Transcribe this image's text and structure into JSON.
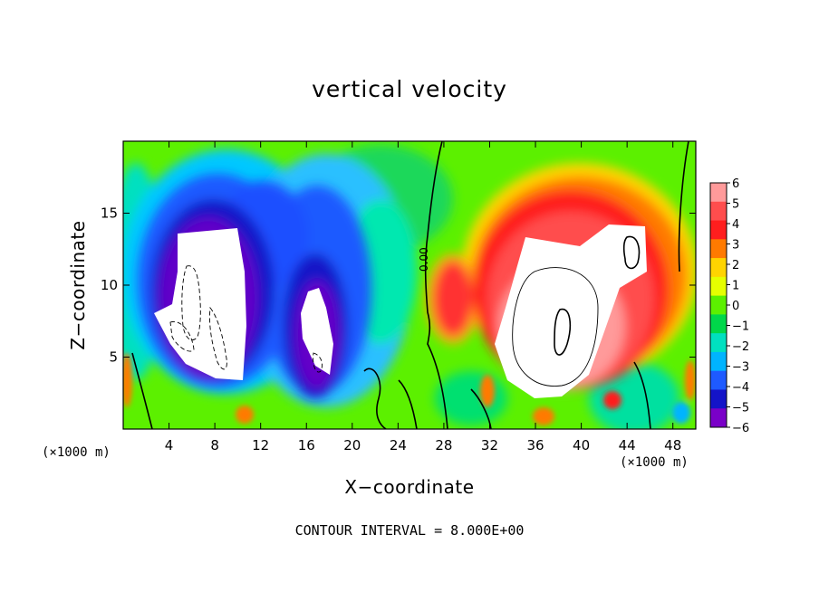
{
  "chart_data": {
    "type": "heatmap",
    "title": "vertical velocity",
    "xlabel": "X−coordinate",
    "ylabel": "Z−coordinate",
    "x_unit": "(×1000 m)",
    "y_unit": "(×1000 m)",
    "xlim": [
      0,
      50
    ],
    "ylim": [
      0,
      20
    ],
    "x_ticks": [
      4,
      8,
      12,
      16,
      20,
      24,
      28,
      32,
      36,
      40,
      44,
      48
    ],
    "y_ticks": [
      5,
      10,
      15
    ],
    "colorbar": {
      "ticks": [
        "6",
        "5",
        "4",
        "3",
        "2",
        "1",
        "0",
        "−1",
        "−2",
        "−3",
        "−4",
        "−5",
        "−6"
      ],
      "colors": [
        "#ff9a9a",
        "#ff4d4d",
        "#ff1e1e",
        "#ff7a00",
        "#ffd400",
        "#e6ff00",
        "#5cf000",
        "#00d84a",
        "#00e0c0",
        "#00b4ff",
        "#1e5aff",
        "#1414c8",
        "#7a00c8"
      ]
    },
    "contour_interval": "CONTOUR INTERVAL = 8.000E+00",
    "contour_label": "0.00"
  }
}
